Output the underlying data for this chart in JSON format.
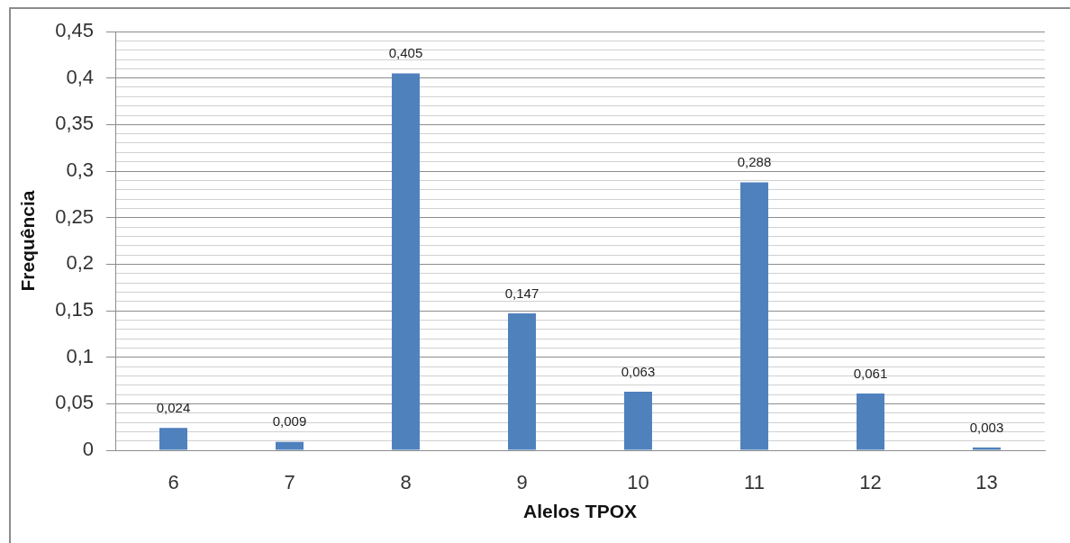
{
  "chart_data": {
    "type": "bar",
    "xlabel": "Alelos TPOX",
    "ylabel": "Frequência",
    "categories": [
      "6",
      "7",
      "8",
      "9",
      "10",
      "11",
      "12",
      "13"
    ],
    "values": [
      0.024,
      0.009,
      0.405,
      0.147,
      0.063,
      0.288,
      0.061,
      0.003
    ],
    "value_labels": [
      "0,024",
      "0,009",
      "0,405",
      "0,147",
      "0,063",
      "0,288",
      "0,061",
      "0,003"
    ],
    "color": "#4f81bd",
    "ylim": [
      0,
      0.45
    ],
    "yticks": [
      0,
      {
        "value": 0.01,
        "label": null
      },
      {
        "value": 0.02,
        "label": null
      },
      {
        "value": 0.03,
        "label": null
      },
      {
        "value": 0.04,
        "label": null
      },
      {
        "value": 0.05,
        "label": "0,05"
      },
      {
        "value": 0.06,
        "label": null
      },
      {
        "value": 0.07,
        "label": null
      },
      {
        "value": 0.08,
        "label": null
      },
      {
        "value": 0.09,
        "label": null
      },
      {
        "value": 0.1,
        "label": "0,1"
      },
      {
        "value": 0.11,
        "label": null
      },
      {
        "value": 0.12,
        "label": null
      },
      {
        "value": 0.13,
        "label": null
      },
      {
        "value": 0.14,
        "label": null
      },
      {
        "value": 0.15,
        "label": "0,15"
      },
      {
        "value": 0.16,
        "label": null
      },
      {
        "value": 0.17,
        "label": null
      },
      {
        "value": 0.18,
        "label": null
      },
      {
        "value": 0.19,
        "label": null
      },
      {
        "value": 0.2,
        "label": "0,2"
      },
      {
        "value": 0.21,
        "label": null
      },
      {
        "value": 0.22,
        "label": null
      },
      {
        "value": 0.23,
        "label": null
      },
      {
        "value": 0.24,
        "label": null
      },
      {
        "value": 0.25,
        "label": "0,25"
      },
      {
        "value": 0.26,
        "label": null
      },
      {
        "value": 0.27,
        "label": null
      },
      {
        "value": 0.28,
        "label": null
      },
      {
        "value": 0.29,
        "label": null
      },
      {
        "value": 0.3,
        "label": "0,3"
      },
      {
        "value": 0.31,
        "label": null
      },
      {
        "value": 0.32,
        "label": null
      },
      {
        "value": 0.33,
        "label": null
      },
      {
        "value": 0.34,
        "label": null
      },
      {
        "value": 0.35,
        "label": "0,35"
      },
      {
        "value": 0.36,
        "label": null
      },
      {
        "value": 0.37,
        "label": null
      },
      {
        "value": 0.38,
        "label": null
      },
      {
        "value": 0.39,
        "label": null
      },
      {
        "value": 0.4,
        "label": "0,4"
      },
      {
        "value": 0.41,
        "label": null
      },
      {
        "value": 0.42,
        "label": null
      },
      {
        "value": 0.43,
        "label": null
      },
      {
        "value": 0.44,
        "label": null
      },
      {
        "value": 0.45,
        "label": "0,45"
      }
    ],
    "grid": "y"
  }
}
